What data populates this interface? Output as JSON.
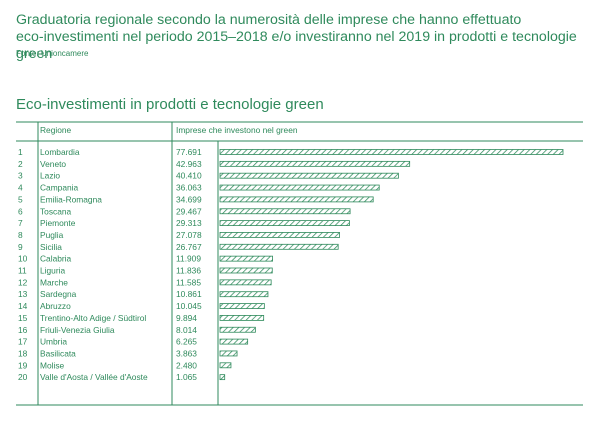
{
  "header": {
    "title_line1": "Graduatoria regionale secondo la numerosità delle imprese che hanno effettuato",
    "title_line2": "eco-investimenti nel periodo 2015–2018 e/o investiranno nel 2019 in prodotti e tecnologie green",
    "source": "Fonte: Unioncamere",
    "subtitle": "Eco-investimenti in prodotti e tecnologie green"
  },
  "colors": {
    "accent": "#2f8a5c"
  },
  "chart_data": {
    "type": "bar",
    "orientation": "horizontal",
    "title": "Eco-investimenti in prodotti e tecnologie green",
    "column_headers": {
      "region": "Regione",
      "value": "Imprese che investono nel green"
    },
    "ranks": [
      "1",
      "2",
      "3",
      "4",
      "5",
      "6",
      "7",
      "8",
      "9",
      "10",
      "11",
      "12",
      "13",
      "14",
      "15",
      "16",
      "17",
      "18",
      "19",
      "20"
    ],
    "categories": [
      "Lombardia",
      "Veneto",
      "Lazio",
      "Campania",
      "Emilia-Romagna",
      "Toscana",
      "Piemonte",
      "Puglia",
      "Sicilia",
      "Calabria",
      "Liguria",
      "Marche",
      "Sardegna",
      "Abruzzo",
      "Trentino-Alto Adige / Südtirol",
      "Friuli-Venezia Giulia",
      "Umbria",
      "Basilicata",
      "Molise",
      "Valle d'Aosta / Vallée d'Aoste"
    ],
    "value_labels": [
      "77.691",
      "42.963",
      "40.410",
      "36.063",
      "34.699",
      "29.467",
      "29.313",
      "27.078",
      "26.767",
      "11.909",
      "11.836",
      "11.585",
      "10.861",
      "10.045",
      "9.894",
      "8.014",
      "6.265",
      "3.863",
      "2.480",
      "1.065"
    ],
    "values": [
      77691,
      42963,
      40410,
      36063,
      34699,
      29467,
      29313,
      27078,
      26767,
      11909,
      11836,
      11585,
      10861,
      10045,
      9894,
      8014,
      6265,
      3863,
      2480,
      1065
    ],
    "xlim": [
      0,
      77691
    ],
    "bar_fill": "hatched",
    "grid": false,
    "legend": "none"
  }
}
